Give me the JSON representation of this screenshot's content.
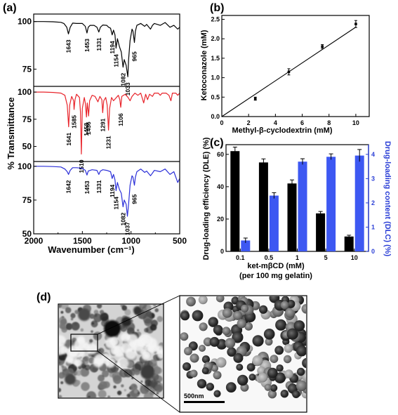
{
  "panel_labels": {
    "a": "(a)",
    "b": "(b)",
    "c": "(c)",
    "d": "(d)"
  },
  "colors": {
    "black": "#000000",
    "red": "#e8242b",
    "blue": "#2b2fd8",
    "dlc_bar": "#3d58f2",
    "blue_text": "#2b3fd6"
  },
  "chart_data": [
    {
      "id": "a",
      "type": "line",
      "xlabel": "Wavenumber (cm⁻¹)",
      "ylabel": "% Transmittance",
      "xlim": [
        2000,
        500
      ],
      "x_ticks": [
        "2000",
        "1500",
        "1000",
        "500"
      ],
      "series": [
        {
          "color": "black",
          "ylim": [
            70,
            101
          ],
          "y_ticks": [
            "100",
            "75"
          ],
          "points": [
            [
              2000,
              100
            ],
            [
              1900,
              100
            ],
            [
              1800,
              99.9
            ],
            [
              1720,
              99.6
            ],
            [
              1690,
              99
            ],
            [
              1660,
              97
            ],
            [
              1643,
              93.5
            ],
            [
              1625,
              97
            ],
            [
              1600,
              99.2
            ],
            [
              1560,
              99
            ],
            [
              1500,
              99
            ],
            [
              1470,
              97.5
            ],
            [
              1453,
              94
            ],
            [
              1440,
              97
            ],
            [
              1420,
              98
            ],
            [
              1380,
              98
            ],
            [
              1350,
              97
            ],
            [
              1331,
              94.5
            ],
            [
              1315,
              97
            ],
            [
              1290,
              98.2
            ],
            [
              1250,
              98
            ],
            [
              1230,
              97
            ],
            [
              1210,
              96.5
            ],
            [
              1194,
              93
            ],
            [
              1180,
              95.5
            ],
            [
              1165,
              93
            ],
            [
              1154,
              86
            ],
            [
              1140,
              91
            ],
            [
              1120,
              87
            ],
            [
              1100,
              84
            ],
            [
              1082,
              76
            ],
            [
              1070,
              80
            ],
            [
              1050,
              77
            ],
            [
              1033,
              71
            ],
            [
              1025,
              80
            ],
            [
              1010,
              90
            ],
            [
              990,
              96
            ],
            [
              980,
              95
            ],
            [
              965,
              89
            ],
            [
              955,
              95
            ],
            [
              940,
              98
            ],
            [
              900,
              99
            ],
            [
              860,
              97.5
            ],
            [
              840,
              98.5
            ],
            [
              800,
              96
            ],
            [
              780,
              98
            ],
            [
              760,
              99
            ],
            [
              700,
              98
            ],
            [
              650,
              99.5
            ],
            [
              600,
              97
            ],
            [
              560,
              98
            ],
            [
              520,
              96
            ],
            [
              500,
              97
            ]
          ],
          "peaks": [
            {
              "x": 1643,
              "label": "1643"
            },
            {
              "x": 1453,
              "label": "1453"
            },
            {
              "x": 1331,
              "label": "1331"
            },
            {
              "x": 1194,
              "label": "1194"
            },
            {
              "x": 1154,
              "label": "1154"
            },
            {
              "x": 1082,
              "label": "1082"
            },
            {
              "x": 1033,
              "label": "1033"
            },
            {
              "x": 965,
              "label": "965"
            }
          ]
        },
        {
          "color": "red",
          "ylim": [
            40,
            102
          ],
          "y_ticks": [
            "100",
            "75",
            "50"
          ],
          "points": [
            [
              2000,
              100
            ],
            [
              1900,
              100
            ],
            [
              1800,
              99.7
            ],
            [
              1720,
              99
            ],
            [
              1680,
              97
            ],
            [
              1655,
              88
            ],
            [
              1641,
              68
            ],
            [
              1630,
              88
            ],
            [
              1610,
              96
            ],
            [
              1590,
              92
            ],
            [
              1585,
              84
            ],
            [
              1575,
              93
            ],
            [
              1560,
              98
            ],
            [
              1530,
              95
            ],
            [
              1520,
              82
            ],
            [
              1510,
              43
            ],
            [
              1500,
              85
            ],
            [
              1480,
              95
            ],
            [
              1470,
              90
            ],
            [
              1458,
              77
            ],
            [
              1450,
              90
            ],
            [
              1440,
              82
            ],
            [
              1436,
              78
            ],
            [
              1425,
              92
            ],
            [
              1400,
              97
            ],
            [
              1370,
              96
            ],
            [
              1340,
              91
            ],
            [
              1320,
              96
            ],
            [
              1300,
              93
            ],
            [
              1291,
              81
            ],
            [
              1280,
              92
            ],
            [
              1260,
              95
            ],
            [
              1245,
              88
            ],
            [
              1231,
              65
            ],
            [
              1220,
              85
            ],
            [
              1200,
              95
            ],
            [
              1180,
              92
            ],
            [
              1160,
              94
            ],
            [
              1130,
              97
            ],
            [
              1115,
              93
            ],
            [
              1106,
              86
            ],
            [
              1095,
              96
            ],
            [
              1060,
              98
            ],
            [
              1030,
              95
            ],
            [
              1010,
              92
            ],
            [
              990,
              96
            ],
            [
              960,
              99
            ],
            [
              930,
              97
            ],
            [
              900,
              99
            ],
            [
              870,
              90
            ],
            [
              850,
              98
            ],
            [
              830,
              93
            ],
            [
              810,
              98
            ],
            [
              780,
              96
            ],
            [
              760,
              99
            ],
            [
              720,
              99
            ],
            [
              700,
              97
            ],
            [
              680,
              99
            ],
            [
              640,
              99
            ],
            [
              610,
              97
            ],
            [
              590,
              92
            ],
            [
              575,
              99
            ],
            [
              540,
              99
            ],
            [
              520,
              97
            ],
            [
              500,
              99
            ]
          ],
          "peaks": [
            {
              "x": 1641,
              "label": "1641"
            },
            {
              "x": 1585,
              "label": "1585"
            },
            {
              "x": 1510,
              "label": "1510"
            },
            {
              "x": 1458,
              "label": "1458"
            },
            {
              "x": 1436,
              "label": "1436"
            },
            {
              "x": 1291,
              "label": "1291"
            },
            {
              "x": 1231,
              "label": "1231"
            },
            {
              "x": 1106,
              "label": "1106"
            }
          ]
        },
        {
          "color": "blue",
          "ylim": [
            50,
            102
          ],
          "y_ticks": [
            "100",
            "75",
            "50"
          ],
          "points": [
            [
              2000,
              100
            ],
            [
              1900,
              100
            ],
            [
              1800,
              99.8
            ],
            [
              1720,
              99.5
            ],
            [
              1680,
              98
            ],
            [
              1655,
              96
            ],
            [
              1642,
              94
            ],
            [
              1625,
              97
            ],
            [
              1600,
              99
            ],
            [
              1560,
              99
            ],
            [
              1500,
              98.5
            ],
            [
              1470,
              97
            ],
            [
              1453,
              93.5
            ],
            [
              1440,
              96.5
            ],
            [
              1400,
              97.5
            ],
            [
              1350,
              97
            ],
            [
              1331,
              94
            ],
            [
              1315,
              96.5
            ],
            [
              1290,
              97.5
            ],
            [
              1250,
              97
            ],
            [
              1210,
              96
            ],
            [
              1194,
              91
            ],
            [
              1180,
              94
            ],
            [
              1165,
              90
            ],
            [
              1154,
              82
            ],
            [
              1140,
              88
            ],
            [
              1120,
              83
            ],
            [
              1100,
              80
            ],
            [
              1082,
              70
            ],
            [
              1070,
              75
            ],
            [
              1050,
              72
            ],
            [
              1037,
              63
            ],
            [
              1025,
              72
            ],
            [
              1010,
              86
            ],
            [
              990,
              93
            ],
            [
              980,
              92
            ],
            [
              965,
              86
            ],
            [
              955,
              92
            ],
            [
              940,
              96
            ],
            [
              900,
              98
            ],
            [
              860,
              95.5
            ],
            [
              840,
              96.5
            ],
            [
              800,
              93
            ],
            [
              780,
              95
            ],
            [
              760,
              97
            ],
            [
              700,
              96
            ],
            [
              650,
              98
            ],
            [
              600,
              94
            ],
            [
              560,
              96
            ],
            [
              520,
              88
            ],
            [
              500,
              91
            ]
          ],
          "peaks": [
            {
              "x": 1642,
              "label": "1642"
            },
            {
              "x": 1453,
              "label": "1453"
            },
            {
              "x": 1331,
              "label": "1331"
            },
            {
              "x": 1194,
              "label": "1194"
            },
            {
              "x": 1154,
              "label": "1154"
            },
            {
              "x": 1082,
              "label": "1082"
            },
            {
              "x": 1037,
              "label": "1037"
            },
            {
              "x": 965,
              "label": "965"
            }
          ]
        }
      ]
    },
    {
      "id": "b",
      "type": "scatter",
      "xlabel": "Methyl-β-cyclodextrin (mM)",
      "ylabel": "Ketoconazole (mM)",
      "xlim": [
        0,
        11
      ],
      "ylim": [
        0,
        2.6
      ],
      "x_ticks": [
        "0",
        "2",
        "4",
        "6",
        "8",
        "10"
      ],
      "y_ticks": [
        "0.0",
        "0.5",
        "1.0",
        "1.5",
        "2.0",
        "2.5"
      ],
      "x": [
        2.5,
        5,
        7.5,
        10
      ],
      "y": [
        0.46,
        1.15,
        1.8,
        2.38
      ],
      "err": [
        0.04,
        0.08,
        0.05,
        0.09
      ],
      "fit": [
        [
          0,
          0
        ],
        [
          10,
          2.3
        ]
      ]
    },
    {
      "id": "c",
      "type": "bar",
      "xlabel": "ket-mβCD (mM)",
      "xlabel2": "(per 100 mg gelatin)",
      "ylabel_left": "Drug-loading efficiency (DLE) (%)",
      "ylabel_right": "Drug-loading content (DLC) (%)",
      "categories": [
        "0.1",
        "0.5",
        "1",
        "5",
        "10"
      ],
      "ylim_left": [
        0,
        66
      ],
      "ylim_right": [
        0,
        4.4
      ],
      "y_ticks_left": [
        "0",
        "20",
        "40",
        "60"
      ],
      "y_ticks_right": [
        "0",
        "1",
        "2",
        "3",
        "4"
      ],
      "series": [
        {
          "axis": "left",
          "color": "black",
          "values": [
            62,
            55,
            42,
            23.5,
            9.2
          ],
          "err": [
            2.5,
            2.2,
            2.2,
            1.2,
            0.8
          ]
        },
        {
          "axis": "right",
          "color": "dlc_bar",
          "values": [
            0.45,
            2.3,
            3.7,
            3.9,
            3.95
          ],
          "err": [
            0.1,
            0.12,
            0.12,
            0.12,
            0.25
          ]
        }
      ]
    }
  ],
  "tem": {
    "scale_bar_label": "500nm"
  }
}
